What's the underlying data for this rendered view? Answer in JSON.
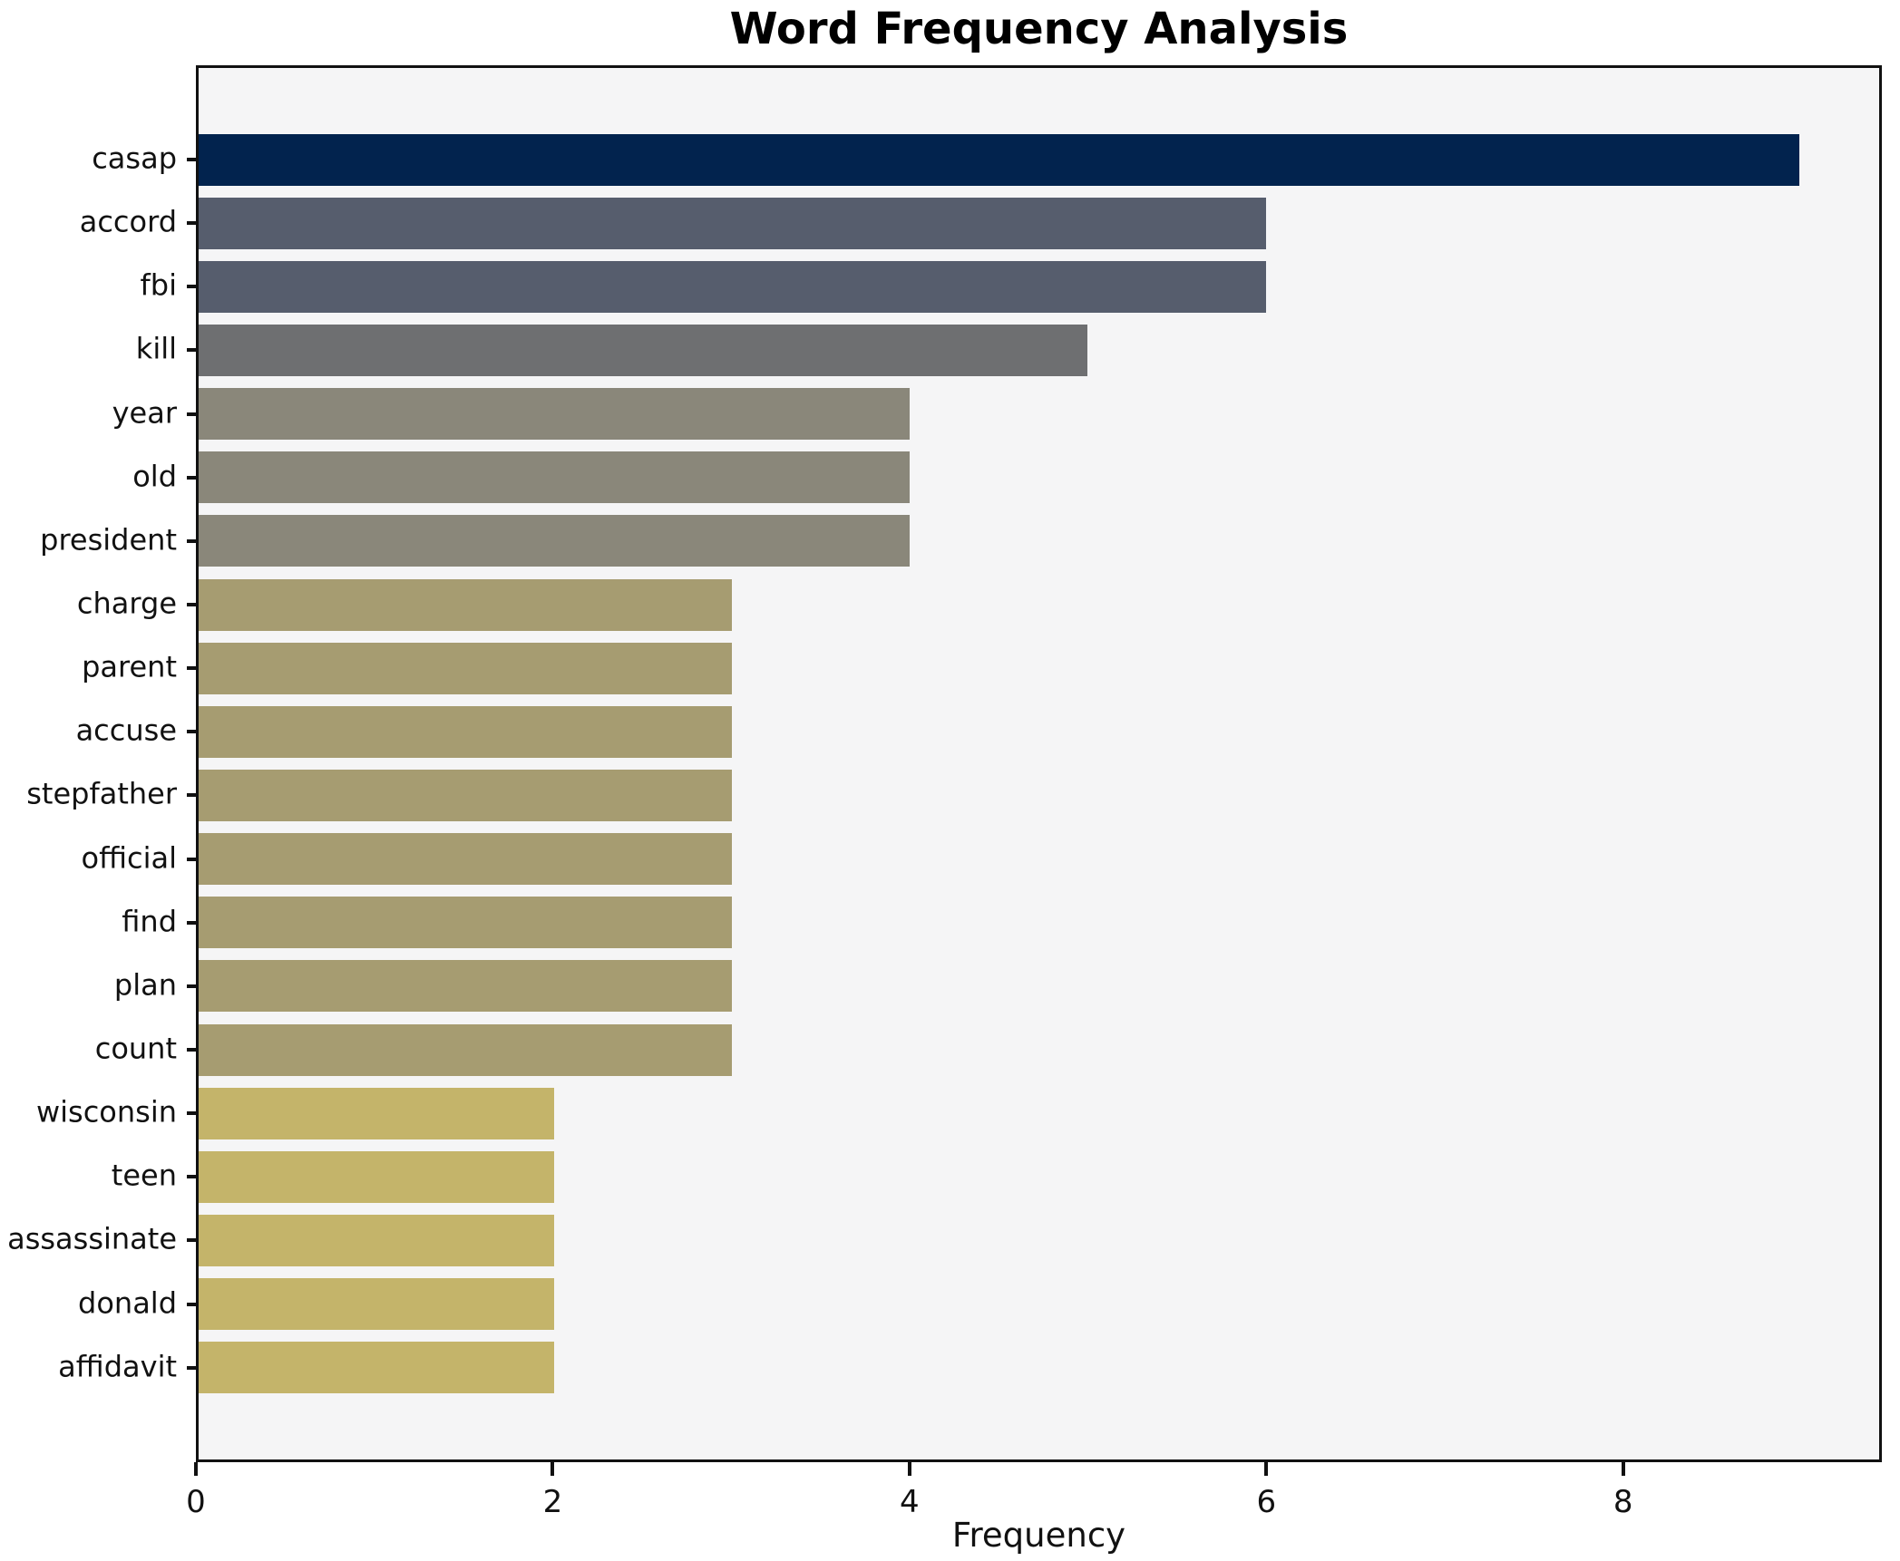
{
  "title": "Word Frequency Analysis",
  "xlabel": "Frequency",
  "chart_data": {
    "type": "bar",
    "orientation": "horizontal",
    "title": "Word Frequency Analysis",
    "xlabel": "Frequency",
    "ylabel": "",
    "categories": [
      "casap",
      "accord",
      "fbi",
      "kill",
      "year",
      "old",
      "president",
      "charge",
      "parent",
      "accuse",
      "stepfather",
      "official",
      "find",
      "plan",
      "count",
      "wisconsin",
      "teen",
      "assassinate",
      "donald",
      "affidavit"
    ],
    "values": [
      9,
      6,
      6,
      5,
      4,
      4,
      4,
      3,
      3,
      3,
      3,
      3,
      3,
      3,
      3,
      2,
      2,
      2,
      2,
      2
    ],
    "bar_colors": [
      "#02234e",
      "#565d6d",
      "#565d6d",
      "#6e6f71",
      "#8a877a",
      "#8a877a",
      "#8a877a",
      "#a69c71",
      "#a69c71",
      "#a69c71",
      "#a69c71",
      "#a69c71",
      "#a69c71",
      "#a69c71",
      "#a69c71",
      "#c4b46a",
      "#c4b46a",
      "#c4b46a",
      "#c4b46a",
      "#c4b46a"
    ],
    "xlim": [
      0,
      9.45
    ],
    "xticks": [
      0,
      2,
      4,
      6,
      8
    ],
    "grid": false,
    "legend": "none",
    "plot_bg": "#f5f5f6",
    "figure_bg": "#ffffff",
    "spine_color": "#111111"
  }
}
